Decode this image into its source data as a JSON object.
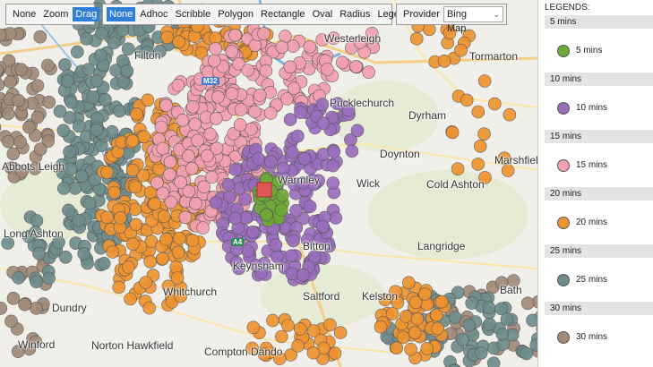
{
  "toolbar": {
    "mode_buttons": [
      {
        "label": "None",
        "active": false
      },
      {
        "label": "Zoom",
        "active": false
      },
      {
        "label": "Drag",
        "active": true
      }
    ],
    "draw_buttons": [
      {
        "label": "None",
        "active": true
      },
      {
        "label": "Adhoc",
        "active": false
      },
      {
        "label": "Scribble",
        "active": false
      },
      {
        "label": "Polygon",
        "active": false
      },
      {
        "label": "Rectangle",
        "active": false
      },
      {
        "label": "Oval",
        "active": false
      },
      {
        "label": "Radius",
        "active": false
      },
      {
        "label": "Legend",
        "active": false
      }
    ],
    "provider_label": "Provider",
    "provider_value": "Bing Map"
  },
  "map": {
    "places": [
      "Westerleigh",
      "Tormarton",
      "Filton",
      "Pucklechurch",
      "Dyrham",
      "Abbots Leigh",
      "Doynton",
      "Marshfield",
      "Wick",
      "Cold Ashton",
      "Warmley",
      "Long Ashton",
      "Langridge",
      "Bitton",
      "Keynsham",
      "Whitchurch",
      "Kelston",
      "Saltford",
      "Dundry",
      "Bath",
      "Winford",
      "Norton Hawkfield",
      "Compton Dando"
    ],
    "roads": [
      "M32",
      "A4"
    ],
    "colors": {
      "5": "#6ea936",
      "10": "#9a6dbd",
      "15": "#f3a0b0",
      "20": "#ee9330",
      "25": "#6f8d8d",
      "30": "#a18a78",
      "center": "#e05555"
    }
  },
  "legend": {
    "title": "LEGENDS:",
    "items": [
      {
        "header": "5 mins",
        "label": "5 mins",
        "color": "#6ea936"
      },
      {
        "header": "10 mins",
        "label": "10 mins",
        "color": "#9a6dbd"
      },
      {
        "header": "15 mins",
        "label": "15 mins",
        "color": "#f3a0b0"
      },
      {
        "header": "20 mins",
        "label": "20 mins",
        "color": "#ee9330"
      },
      {
        "header": "25 mins",
        "label": "25 mins",
        "color": "#6f8d8d"
      },
      {
        "header": "30 mins",
        "label": "30 mins",
        "color": "#a18a78"
      }
    ]
  }
}
